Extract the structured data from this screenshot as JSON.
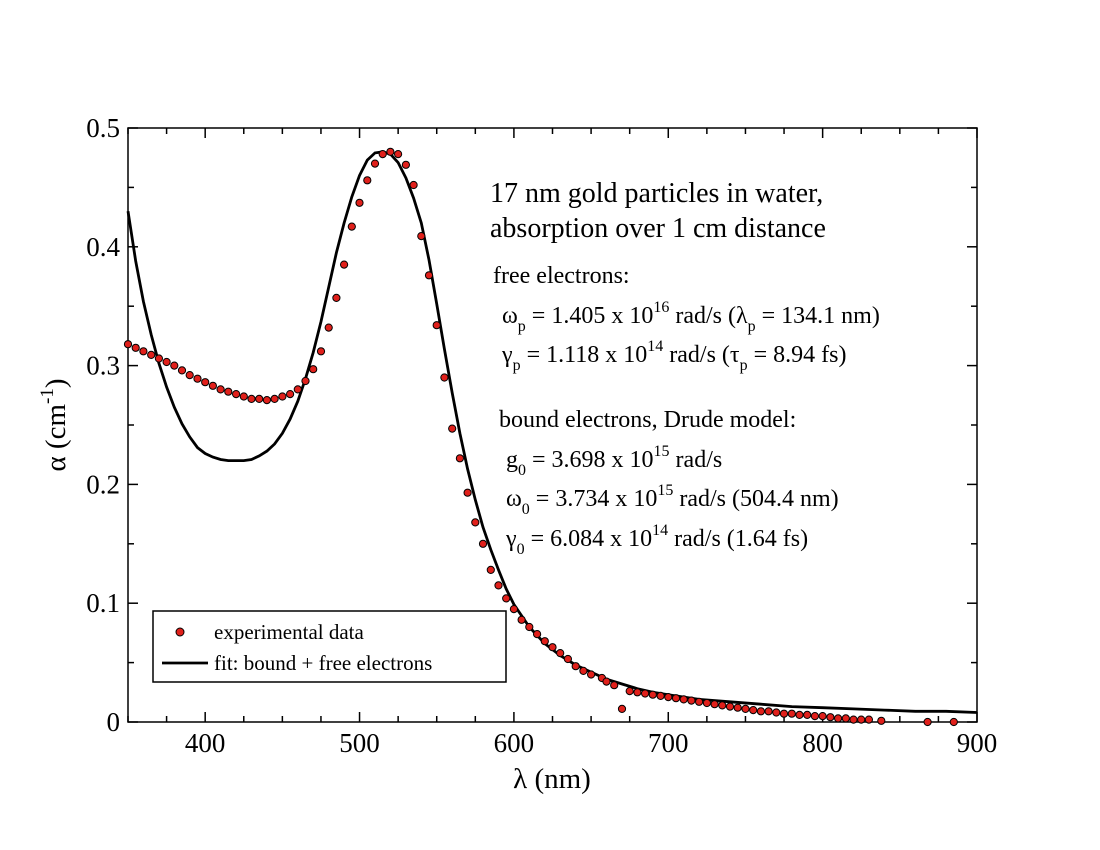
{
  "chart_data": {
    "type": "scatter",
    "xlabel": "λ (nm)",
    "ylabel": "α (cm",
    "ylabel_sup": "-1",
    "ylabel_close": ")",
    "xlim": [
      350,
      900
    ],
    "ylim": [
      0,
      0.5
    ],
    "x_ticks": [
      400,
      500,
      600,
      700,
      800,
      900
    ],
    "x_tick_labels": [
      "400",
      "500",
      "600",
      "700",
      "800",
      "900"
    ],
    "y_ticks": [
      0,
      0.1,
      0.2,
      0.3,
      0.4,
      0.5
    ],
    "y_tick_labels": [
      "0",
      "0.1",
      "0.2",
      "0.3",
      "0.4",
      "0.5"
    ],
    "grid": false,
    "legend_position": "bottom-left",
    "colors": {
      "points": "#e0201b",
      "point_edge": "#000000",
      "fit": "#000000"
    },
    "series": [
      {
        "name": "experimental data",
        "kind": "scatter",
        "x": [
          350,
          355,
          360,
          365,
          370,
          375,
          380,
          385,
          390,
          395,
          400,
          405,
          410,
          415,
          420,
          425,
          430,
          435,
          440,
          445,
          450,
          455,
          460,
          465,
          470,
          475,
          480,
          485,
          490,
          495,
          500,
          505,
          510,
          515,
          520,
          525,
          530,
          535,
          540,
          545,
          550,
          555,
          560,
          565,
          570,
          575,
          580,
          585,
          590,
          595,
          600,
          605,
          610,
          615,
          620,
          625,
          630,
          635,
          640,
          645,
          650,
          657,
          660,
          665,
          670,
          675,
          680,
          685,
          690,
          695,
          700,
          705,
          710,
          715,
          720,
          725,
          730,
          735,
          740,
          745,
          750,
          755,
          760,
          765,
          770,
          775,
          780,
          785,
          790,
          795,
          800,
          805,
          810,
          815,
          820,
          825,
          830,
          838,
          868,
          885
        ],
        "y": [
          0.318,
          0.315,
          0.312,
          0.309,
          0.306,
          0.303,
          0.3,
          0.296,
          0.292,
          0.289,
          0.286,
          0.283,
          0.28,
          0.278,
          0.276,
          0.274,
          0.272,
          0.272,
          0.271,
          0.272,
          0.274,
          0.276,
          0.28,
          0.287,
          0.297,
          0.312,
          0.332,
          0.357,
          0.385,
          0.417,
          0.437,
          0.456,
          0.47,
          0.478,
          0.48,
          0.478,
          0.469,
          0.452,
          0.409,
          0.376,
          0.334,
          0.29,
          0.247,
          0.222,
          0.193,
          0.168,
          0.15,
          0.128,
          0.115,
          0.104,
          0.095,
          0.086,
          0.08,
          0.074,
          0.068,
          0.063,
          0.058,
          0.053,
          0.047,
          0.043,
          0.04,
          0.037,
          0.034,
          0.031,
          0.011,
          0.026,
          0.025,
          0.024,
          0.023,
          0.022,
          0.021,
          0.02,
          0.019,
          0.018,
          0.017,
          0.016,
          0.015,
          0.014,
          0.013,
          0.012,
          0.011,
          0.01,
          0.009,
          0.009,
          0.008,
          0.007,
          0.007,
          0.006,
          0.006,
          0.005,
          0.005,
          0.004,
          0.003,
          0.003,
          0.002,
          0.002,
          0.002,
          0.001,
          0.0,
          0.0
        ]
      },
      {
        "name": "fit: bound + free electrons",
        "kind": "line",
        "x": [
          350,
          355,
          360,
          365,
          370,
          375,
          380,
          385,
          390,
          395,
          400,
          405,
          410,
          415,
          420,
          425,
          430,
          435,
          440,
          445,
          450,
          455,
          460,
          465,
          470,
          475,
          480,
          485,
          490,
          495,
          500,
          505,
          510,
          515,
          520,
          525,
          530,
          535,
          540,
          545,
          550,
          555,
          560,
          565,
          570,
          575,
          580,
          585,
          590,
          595,
          600,
          610,
          620,
          630,
          640,
          650,
          660,
          670,
          680,
          690,
          700,
          720,
          740,
          760,
          780,
          800,
          820,
          840,
          860,
          880,
          900
        ],
        "y": [
          0.43,
          0.388,
          0.354,
          0.326,
          0.302,
          0.282,
          0.265,
          0.251,
          0.24,
          0.231,
          0.226,
          0.223,
          0.221,
          0.22,
          0.22,
          0.22,
          0.221,
          0.224,
          0.228,
          0.234,
          0.243,
          0.255,
          0.27,
          0.289,
          0.311,
          0.337,
          0.366,
          0.395,
          0.42,
          0.442,
          0.46,
          0.473,
          0.479,
          0.48,
          0.478,
          0.471,
          0.458,
          0.441,
          0.42,
          0.389,
          0.352,
          0.314,
          0.277,
          0.243,
          0.213,
          0.187,
          0.164,
          0.145,
          0.128,
          0.112,
          0.099,
          0.08,
          0.066,
          0.056,
          0.048,
          0.042,
          0.036,
          0.032,
          0.028,
          0.025,
          0.023,
          0.019,
          0.017,
          0.015,
          0.013,
          0.012,
          0.011,
          0.01,
          0.009,
          0.009,
          0.008
        ]
      }
    ],
    "annotations": {
      "title_line1": "17 nm gold  particles in water,",
      "title_line2": "absorption over 1 cm distance",
      "free_header": "free electrons:",
      "free_omega_sym": "ω",
      "free_omega_sub": "p",
      "free_omega_val": " = 1.405 x 10",
      "free_omega_exp": "16",
      "free_omega_unit": " rad/s  (",
      "free_lambda_sym": "λ",
      "free_lambda_sub": "p",
      "free_lambda_val": " = 134.1 nm)",
      "free_gamma_sym": "γ",
      "free_gamma_sub": "p",
      "free_gamma_val": " = 1.118 x 10",
      "free_gamma_exp": "14",
      "free_gamma_unit": " rad/s  (",
      "free_tau_sym": "τ",
      "free_tau_sub": "p",
      "free_tau_val": " = 8.94 fs)",
      "bound_header": "bound electrons, Drude model:",
      "bound_g_sym": "g",
      "bound_g_sub": "0",
      "bound_g_val": " = 3.698 x 10",
      "bound_g_exp": "15",
      "bound_g_unit": " rad/s",
      "bound_omega_sym": "ω",
      "bound_omega_sub": "0",
      "bound_omega_val": " = 3.734 x 10",
      "bound_omega_exp": "15",
      "bound_omega_unit": " rad/s   (504.4 nm)",
      "bound_gamma_sym": "γ",
      "bound_gamma_sub": "0",
      "bound_gamma_val": " = 6.084 x 10",
      "bound_gamma_exp": "14",
      "bound_gamma_unit": " rad/s   (1.64 fs)"
    }
  }
}
